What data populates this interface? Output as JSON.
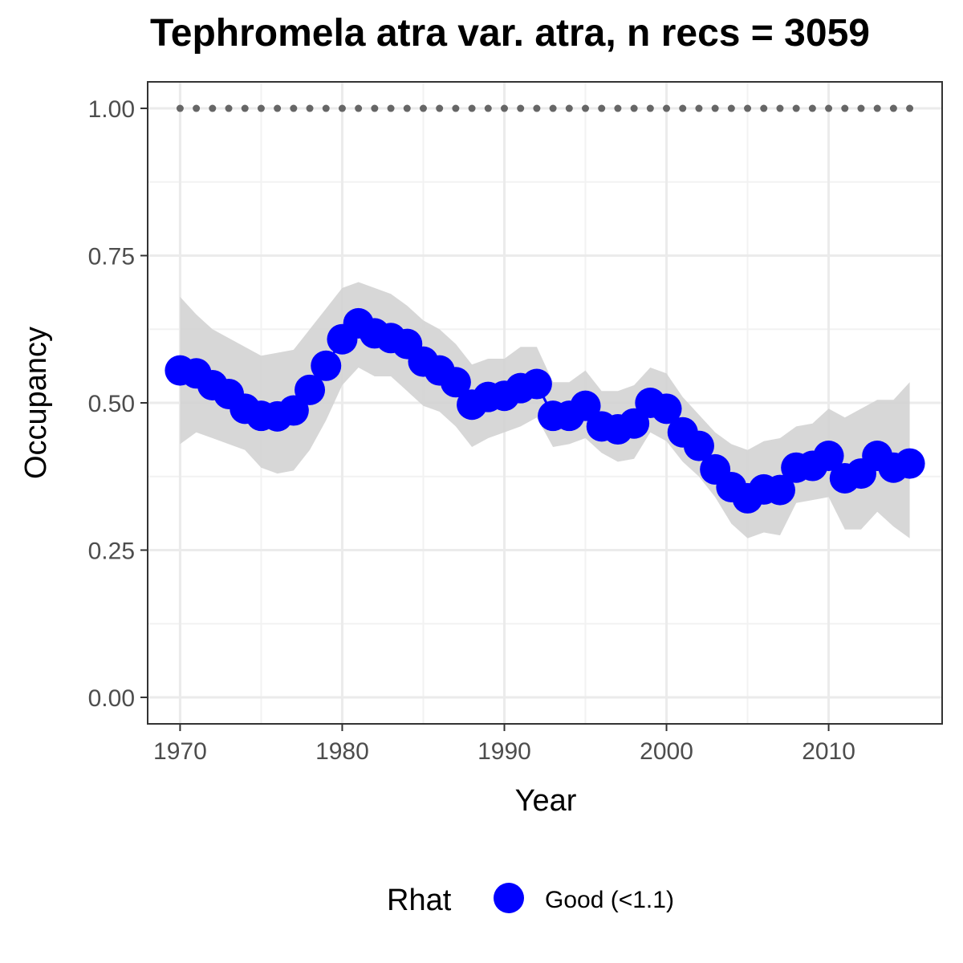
{
  "chart_data": {
    "type": "line",
    "title": "Tephromela atra var. atra, n recs = 3059",
    "xlabel": "Year",
    "ylabel": "Occupancy",
    "xlim": [
      1968,
      2017
    ],
    "ylim": [
      -0.045,
      1.045
    ],
    "x_ticks": [
      1970,
      1980,
      1990,
      2000,
      2010
    ],
    "y_ticks": [
      "0.00",
      "0.25",
      "0.50",
      "0.75",
      "1.00"
    ],
    "y_tick_values": [
      0,
      0.25,
      0.5,
      0.75,
      1.0
    ],
    "grid": true,
    "legend": {
      "title": "Rhat",
      "position": "bottom",
      "entries": [
        {
          "label": "Good (<1.1)",
          "color": "#0000ff"
        }
      ]
    },
    "series": [
      {
        "type": "line_points",
        "color": "#0000ff",
        "x": [
          1970,
          1971,
          1972,
          1973,
          1974,
          1975,
          1976,
          1977,
          1978,
          1979,
          1980,
          1981,
          1982,
          1983,
          1984,
          1985,
          1986,
          1987,
          1988,
          1989,
          1990,
          1991,
          1992,
          1993,
          1994,
          1995,
          1996,
          1997,
          1998,
          1999,
          2000,
          2001,
          2002,
          2003,
          2004,
          2005,
          2006,
          2007,
          2008,
          2009,
          2010,
          2011,
          2012,
          2013,
          2014,
          2015
        ],
        "y": [
          0.555,
          0.55,
          0.53,
          0.515,
          0.49,
          0.478,
          0.477,
          0.487,
          0.522,
          0.563,
          0.608,
          0.635,
          0.618,
          0.61,
          0.6,
          0.57,
          0.555,
          0.535,
          0.497,
          0.51,
          0.512,
          0.525,
          0.532,
          0.478,
          0.478,
          0.495,
          0.46,
          0.455,
          0.465,
          0.5,
          0.49,
          0.45,
          0.427,
          0.387,
          0.357,
          0.338,
          0.353,
          0.352,
          0.39,
          0.393,
          0.41,
          0.372,
          0.38,
          0.41,
          0.39,
          0.397
        ],
        "lower": [
          0.43,
          0.45,
          0.44,
          0.43,
          0.42,
          0.39,
          0.38,
          0.385,
          0.42,
          0.47,
          0.53,
          0.56,
          0.545,
          0.545,
          0.52,
          0.495,
          0.485,
          0.46,
          0.425,
          0.44,
          0.45,
          0.46,
          0.475,
          0.425,
          0.43,
          0.44,
          0.415,
          0.4,
          0.405,
          0.45,
          0.435,
          0.4,
          0.375,
          0.34,
          0.295,
          0.27,
          0.28,
          0.275,
          0.33,
          0.335,
          0.34,
          0.285,
          0.285,
          0.315,
          0.29,
          0.27
        ],
        "upper": [
          0.68,
          0.65,
          0.625,
          0.61,
          0.595,
          0.58,
          0.585,
          0.59,
          0.625,
          0.66,
          0.695,
          0.705,
          0.695,
          0.685,
          0.665,
          0.64,
          0.625,
          0.6,
          0.565,
          0.575,
          0.575,
          0.595,
          0.595,
          0.535,
          0.535,
          0.555,
          0.52,
          0.52,
          0.53,
          0.56,
          0.55,
          0.51,
          0.48,
          0.45,
          0.43,
          0.42,
          0.435,
          0.44,
          0.46,
          0.465,
          0.49,
          0.475,
          0.49,
          0.505,
          0.505,
          0.535
        ]
      },
      {
        "type": "dots",
        "color": "#666666",
        "x": [
          1970,
          1971,
          1972,
          1973,
          1974,
          1975,
          1976,
          1977,
          1978,
          1979,
          1980,
          1981,
          1982,
          1983,
          1984,
          1985,
          1986,
          1987,
          1988,
          1989,
          1990,
          1991,
          1992,
          1993,
          1994,
          1995,
          1996,
          1997,
          1998,
          1999,
          2000,
          2001,
          2002,
          2003,
          2004,
          2005,
          2006,
          2007,
          2008,
          2009,
          2010,
          2011,
          2012,
          2013,
          2014,
          2015
        ],
        "y": [
          1,
          1,
          1,
          1,
          1,
          1,
          1,
          1,
          1,
          1,
          1,
          1,
          1,
          1,
          1,
          1,
          1,
          1,
          1,
          1,
          1,
          1,
          1,
          1,
          1,
          1,
          1,
          1,
          1,
          1,
          1,
          1,
          1,
          1,
          1,
          1,
          1,
          1,
          1,
          1,
          1,
          1,
          1,
          1,
          1,
          1
        ]
      }
    ]
  }
}
